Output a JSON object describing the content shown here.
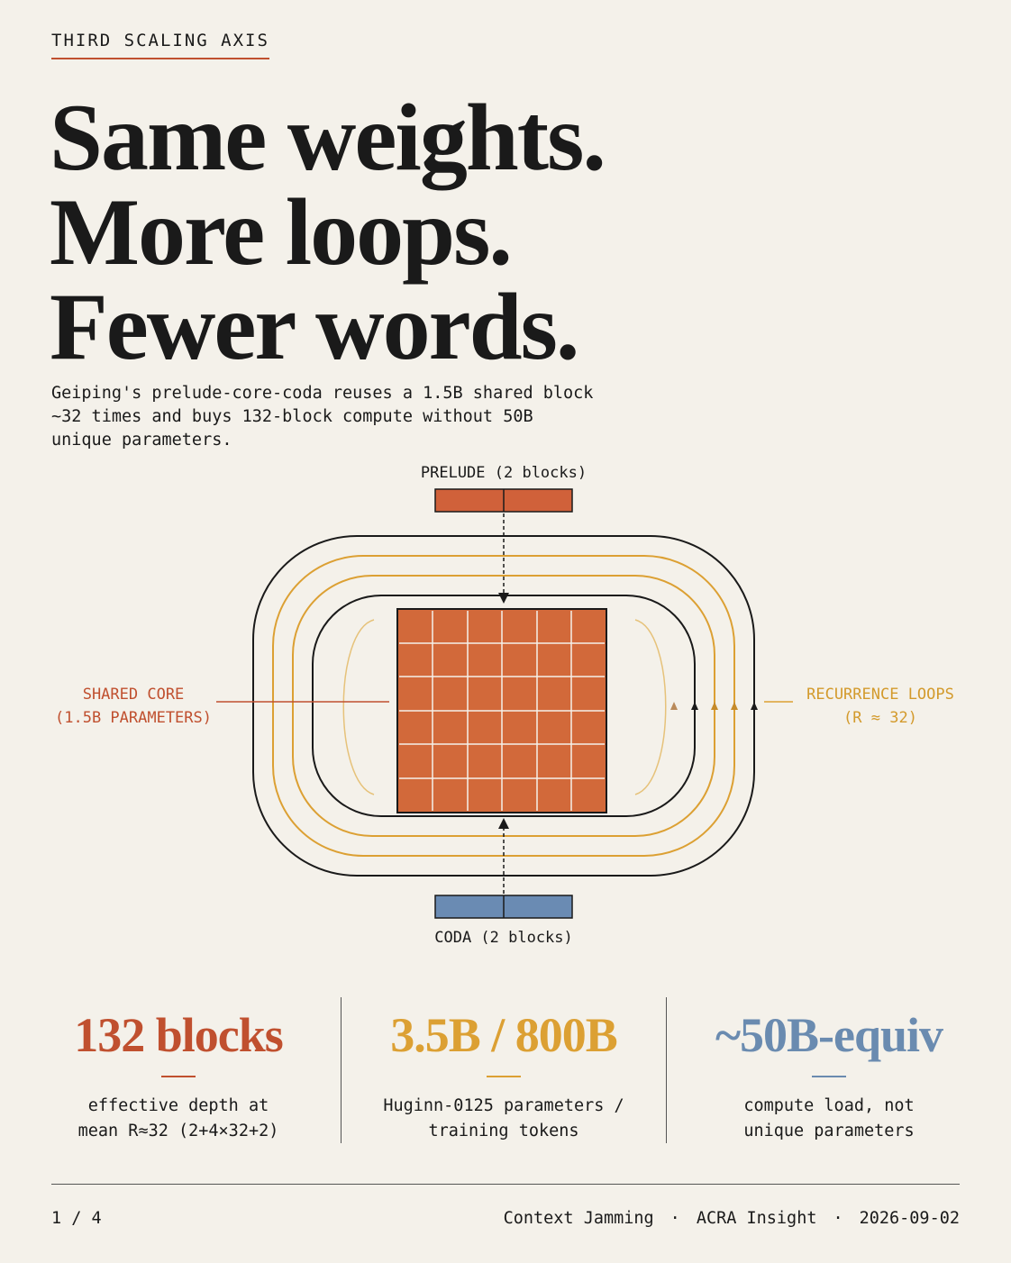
{
  "kicker": "THIRD SCALING AXIS",
  "headline": [
    "Same weights.",
    "More loops.",
    "Fewer words."
  ],
  "deck": [
    "Geiping's prelude-core-coda reuses a 1.5B shared block",
    "~32 times and buys 132-block compute without 50B",
    "unique parameters."
  ],
  "diagram": {
    "prelude": "PRELUDE (2 blocks)",
    "coda": "CODA (2 blocks)",
    "core": [
      "SHARED CORE",
      "(1.5B PARAMETERS)"
    ],
    "loops": [
      "RECURRENCE LOOPS",
      "(R ≈ 32)"
    ]
  },
  "stats": [
    {
      "value": "132 blocks",
      "caption": [
        "effective depth at",
        "mean R≈32 (2+4×32+2)"
      ]
    },
    {
      "value": "3.5B / 800B",
      "caption": [
        "Huginn-0125 parameters /",
        "training tokens"
      ]
    },
    {
      "value": "~50B-equiv",
      "caption": [
        "compute load, not",
        "unique parameters"
      ]
    }
  ],
  "footer": {
    "page": "1 / 4",
    "credits": [
      "Context Jamming",
      "ACRA Insight",
      "2026-09-02"
    ]
  }
}
